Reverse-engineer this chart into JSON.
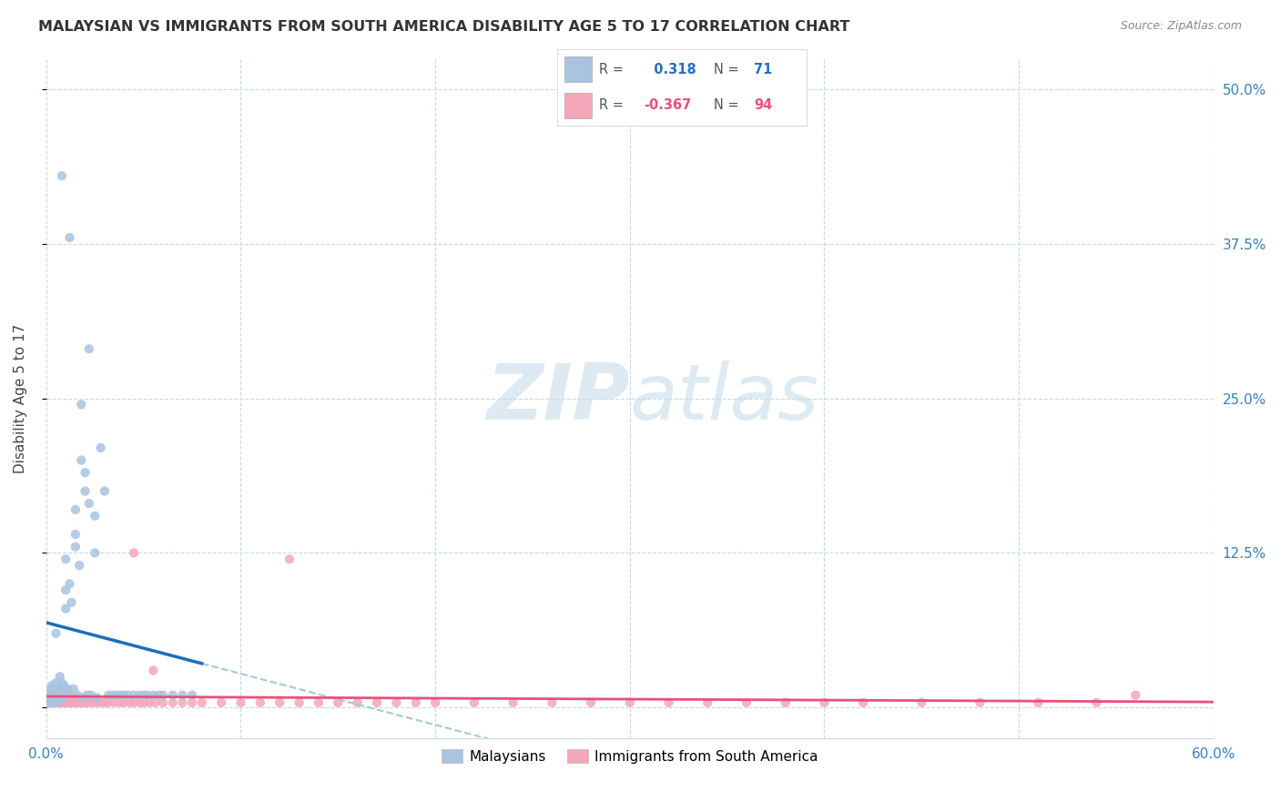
{
  "title": "MALAYSIAN VS IMMIGRANTS FROM SOUTH AMERICA DISABILITY AGE 5 TO 17 CORRELATION CHART",
  "source": "Source: ZipAtlas.com",
  "ylabel": "Disability Age 5 to 17",
  "xlim": [
    0.0,
    0.6
  ],
  "ylim": [
    -0.025,
    0.525
  ],
  "xticks": [
    0.0,
    0.1,
    0.2,
    0.3,
    0.4,
    0.5,
    0.6
  ],
  "xticklabels": [
    "0.0%",
    "",
    "",
    "",
    "",
    "",
    "60.0%"
  ],
  "yticks": [
    0.0,
    0.125,
    0.25,
    0.375,
    0.5
  ],
  "yticklabels": [
    "",
    "12.5%",
    "25.0%",
    "37.5%",
    "50.0%"
  ],
  "malaysian_R": 0.318,
  "malaysian_N": 71,
  "immigrant_R": -0.367,
  "immigrant_N": 94,
  "malaysian_color": "#a8c4e0",
  "immigrant_color": "#f4a7b9",
  "malaysian_line_color": "#1a6fbd",
  "immigrant_line_color": "#e8507a",
  "dashed_line_color": "#a8c8d8",
  "watermark_color": "#c8dce8",
  "legend_label_1": "Malaysians",
  "legend_label_2": "Immigrants from South America",
  "malaysian_scatter_x": [
    0.001,
    0.002,
    0.002,
    0.003,
    0.003,
    0.003,
    0.004,
    0.004,
    0.004,
    0.005,
    0.005,
    0.005,
    0.006,
    0.006,
    0.007,
    0.007,
    0.007,
    0.008,
    0.008,
    0.009,
    0.009,
    0.01,
    0.01,
    0.01,
    0.011,
    0.012,
    0.012,
    0.013,
    0.013,
    0.014,
    0.015,
    0.015,
    0.016,
    0.017,
    0.018,
    0.019,
    0.02,
    0.021,
    0.022,
    0.023,
    0.024,
    0.025,
    0.026,
    0.027,
    0.028,
    0.029,
    0.03,
    0.031,
    0.032,
    0.033,
    0.035,
    0.036,
    0.038,
    0.04,
    0.042,
    0.044,
    0.046,
    0.048,
    0.05,
    0.052,
    0.055,
    0.058,
    0.06,
    0.065,
    0.07,
    0.075,
    0.055,
    0.045,
    0.035,
    0.025,
    0.015
  ],
  "malaysian_scatter_y": [
    0.005,
    0.005,
    0.01,
    0.005,
    0.008,
    0.015,
    0.005,
    0.01,
    0.012,
    0.005,
    0.008,
    0.015,
    0.005,
    0.01,
    0.005,
    0.01,
    0.02,
    0.08,
    0.1,
    0.005,
    0.01,
    0.005,
    0.12,
    0.15,
    0.01,
    0.1,
    0.16,
    0.005,
    0.09,
    0.01,
    0.13,
    0.17,
    0.005,
    0.2,
    0.195,
    0.005,
    0.185,
    0.175,
    0.005,
    0.165,
    0.005,
    0.155,
    0.005,
    0.28,
    0.21,
    0.005,
    0.175,
    0.005,
    0.005,
    0.005,
    0.005,
    0.005,
    0.005,
    0.005,
    0.005,
    0.005,
    0.005,
    0.005,
    0.005,
    0.005,
    0.005,
    0.005,
    0.005,
    0.005,
    0.005,
    0.005,
    0.43,
    0.23,
    0.12,
    0.25,
    0.14
  ],
  "immigrant_scatter_x": [
    0.001,
    0.002,
    0.002,
    0.003,
    0.003,
    0.004,
    0.004,
    0.005,
    0.005,
    0.005,
    0.006,
    0.006,
    0.007,
    0.007,
    0.008,
    0.008,
    0.009,
    0.009,
    0.01,
    0.01,
    0.011,
    0.011,
    0.012,
    0.012,
    0.013,
    0.013,
    0.014,
    0.015,
    0.015,
    0.016,
    0.016,
    0.017,
    0.018,
    0.018,
    0.019,
    0.02,
    0.02,
    0.021,
    0.022,
    0.023,
    0.024,
    0.025,
    0.026,
    0.027,
    0.028,
    0.03,
    0.032,
    0.034,
    0.036,
    0.038,
    0.04,
    0.042,
    0.044,
    0.046,
    0.048,
    0.05,
    0.055,
    0.06,
    0.065,
    0.07,
    0.075,
    0.08,
    0.09,
    0.1,
    0.11,
    0.12,
    0.13,
    0.14,
    0.15,
    0.16,
    0.17,
    0.18,
    0.2,
    0.22,
    0.24,
    0.26,
    0.28,
    0.3,
    0.32,
    0.34,
    0.36,
    0.38,
    0.4,
    0.42,
    0.45,
    0.48,
    0.5,
    0.52,
    0.54,
    0.56,
    0.035,
    0.045,
    0.055,
    0.12
  ],
  "immigrant_scatter_y": [
    0.003,
    0.003,
    0.005,
    0.003,
    0.008,
    0.003,
    0.007,
    0.003,
    0.007,
    0.01,
    0.003,
    0.008,
    0.003,
    0.007,
    0.003,
    0.01,
    0.003,
    0.008,
    0.003,
    0.01,
    0.003,
    0.008,
    0.003,
    0.01,
    0.003,
    0.008,
    0.003,
    0.003,
    0.01,
    0.003,
    0.008,
    0.003,
    0.003,
    0.01,
    0.003,
    0.003,
    0.008,
    0.003,
    0.003,
    0.003,
    0.003,
    0.003,
    0.003,
    0.003,
    0.003,
    0.003,
    0.003,
    0.003,
    0.003,
    0.003,
    0.003,
    0.003,
    0.003,
    0.003,
    0.003,
    0.003,
    0.003,
    0.003,
    0.003,
    0.003,
    0.003,
    0.003,
    0.003,
    0.003,
    0.003,
    0.003,
    0.003,
    0.003,
    0.003,
    0.003,
    0.003,
    0.003,
    0.003,
    0.003,
    0.003,
    0.003,
    0.003,
    0.003,
    0.003,
    0.003,
    0.003,
    0.003,
    0.003,
    0.003,
    0.003,
    0.003,
    0.003,
    0.003,
    0.003,
    0.01,
    0.008,
    0.025,
    0.018,
    0.12
  ]
}
